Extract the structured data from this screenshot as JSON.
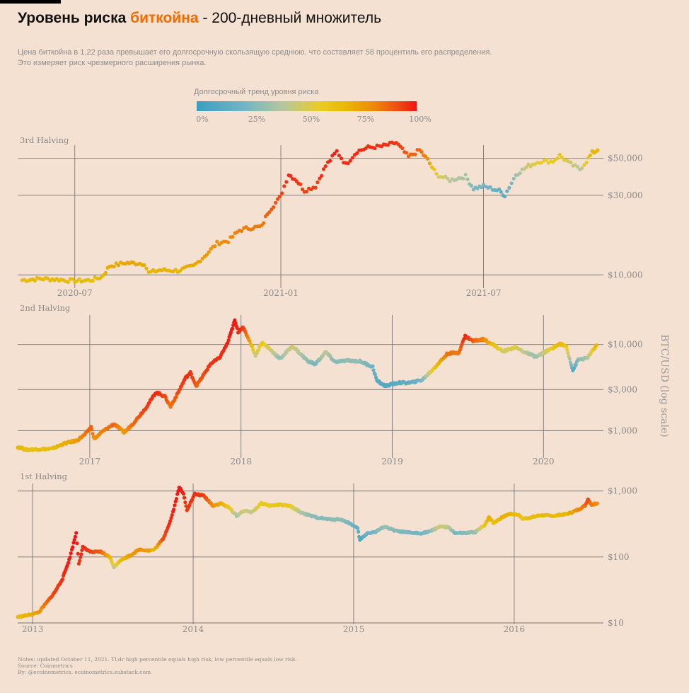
{
  "header": {
    "title_part1": "Уровень риска ",
    "title_part2": "биткойна",
    "title_part3": " - 200-дневный множитель",
    "subtitle_line1": "Цена биткойна в 1,22 раза превышает его долгосрочную скользящую среднюю, что составляет 58 процентиль его распределения.",
    "subtitle_line2": "Это измеряет риск чрезмерного расширения рынка."
  },
  "legend": {
    "title": "Долгосрочный тренд уровня риска",
    "ticks": [
      "0%",
      "25%",
      "50%",
      "75%",
      "100%"
    ]
  },
  "footer": {
    "notes": "Notes: updated October 11, 2021. Tl;dr high percentile equals high risk, low percentile equals low risk.",
    "source": "Source: Coinmetrics",
    "by": "By: @ecoinometrics, ecoinometrics.substack.com"
  },
  "colors": {
    "background": "#f4e1d2",
    "title_accent": "#f26b00",
    "risk_scale": [
      "#3a9fbf",
      "#73b5c4",
      "#b8c79a",
      "#e9cc26",
      "#e8b800",
      "#ee8a0a",
      "#ee4a12",
      "#f01414"
    ]
  },
  "chart_data": [
    {
      "type": "scatter",
      "title": "3rd Halving",
      "ylabel": "BTC/USD (log scale)",
      "yscale": "log",
      "xlim": [
        "2020-05-11",
        "2021-10-11"
      ],
      "ylim": [
        8500,
        60000
      ],
      "xticks": [
        "2020-07",
        "2021-01",
        "2021-07"
      ],
      "yticks": [
        10000,
        30000,
        50000
      ],
      "ytick_labels": [
        "$10,000",
        "$30,000",
        "$50,000"
      ],
      "points": [
        [
          "2020-05-15",
          9300,
          55
        ],
        [
          "2020-06-01",
          9500,
          57
        ],
        [
          "2020-06-15",
          9400,
          56
        ],
        [
          "2020-07-01",
          9200,
          54
        ],
        [
          "2020-07-15",
          9300,
          53
        ],
        [
          "2020-07-25",
          9700,
          56
        ],
        [
          "2020-08-01",
          11300,
          62
        ],
        [
          "2020-08-15",
          11800,
          63
        ],
        [
          "2020-09-01",
          11700,
          62
        ],
        [
          "2020-09-05",
          10300,
          58
        ],
        [
          "2020-09-15",
          10700,
          59
        ],
        [
          "2020-10-01",
          10600,
          58
        ],
        [
          "2020-10-15",
          11300,
          62
        ],
        [
          "2020-10-25",
          13000,
          66
        ],
        [
          "2020-11-05",
          15500,
          70
        ],
        [
          "2020-11-15",
          16000,
          71
        ],
        [
          "2020-11-25",
          18500,
          74
        ],
        [
          "2020-12-01",
          19000,
          74
        ],
        [
          "2020-12-15",
          19500,
          75
        ],
        [
          "2020-12-20",
          23500,
          80
        ],
        [
          "2020-12-31",
          29000,
          86
        ],
        [
          "2021-01-08",
          40000,
          94
        ],
        [
          "2021-01-15",
          37000,
          92
        ],
        [
          "2021-01-22",
          32000,
          88
        ],
        [
          "2021-02-01",
          34000,
          89
        ],
        [
          "2021-02-10",
          45000,
          94
        ],
        [
          "2021-02-20",
          55000,
          97
        ],
        [
          "2021-02-28",
          46000,
          93
        ],
        [
          "2021-03-10",
          55000,
          94
        ],
        [
          "2021-03-20",
          58000,
          94
        ],
        [
          "2021-04-01",
          59000,
          92
        ],
        [
          "2021-04-14",
          62000,
          92
        ],
        [
          "2021-04-25",
          51000,
          80
        ],
        [
          "2021-05-05",
          56000,
          80
        ],
        [
          "2021-05-12",
          49000,
          70
        ],
        [
          "2021-05-20",
          40000,
          40
        ],
        [
          "2021-06-01",
          37000,
          28
        ],
        [
          "2021-06-15",
          39000,
          25
        ],
        [
          "2021-06-22",
          33000,
          15
        ],
        [
          "2021-07-01",
          34000,
          15
        ],
        [
          "2021-07-15",
          32000,
          10
        ],
        [
          "2021-07-20",
          30000,
          8
        ],
        [
          "2021-07-30",
          40000,
          22
        ],
        [
          "2021-08-10",
          45000,
          35
        ],
        [
          "2021-08-20",
          48000,
          42
        ],
        [
          "2021-09-01",
          48000,
          43
        ],
        [
          "2021-09-07",
          52000,
          48
        ],
        [
          "2021-09-15",
          47000,
          35
        ],
        [
          "2021-09-25",
          43000,
          28
        ],
        [
          "2021-10-01",
          48000,
          44
        ],
        [
          "2021-10-06",
          54000,
          60
        ],
        [
          "2021-10-11",
          56000,
          58
        ]
      ]
    },
    {
      "type": "scatter",
      "title": "2nd Halving",
      "ylabel": "BTC/USD (log scale)",
      "yscale": "log",
      "xlim": [
        "2016-07-11",
        "2020-05-11"
      ],
      "ylim": [
        500,
        22000
      ],
      "xticks": [
        "2017",
        "2018",
        "2019",
        "2020"
      ],
      "yticks": [
        1000,
        3000,
        10000
      ],
      "ytick_labels": [
        "$1,000",
        "$3,000",
        "$10,000"
      ],
      "points": [
        [
          "2016-07-11",
          650,
          58
        ],
        [
          "2016-08-01",
          600,
          52
        ],
        [
          "2016-09-01",
          610,
          52
        ],
        [
          "2016-10-01",
          615,
          53
        ],
        [
          "2016-11-01",
          710,
          60
        ],
        [
          "2016-12-01",
          770,
          66
        ],
        [
          "2016-12-20",
          900,
          75
        ],
        [
          "2017-01-04",
          1100,
          82
        ],
        [
          "2017-01-12",
          800,
          68
        ],
        [
          "2017-02-01",
          980,
          74
        ],
        [
          "2017-03-01",
          1200,
          80
        ],
        [
          "2017-03-25",
          950,
          66
        ],
        [
          "2017-04-15",
          1200,
          78
        ],
        [
          "2017-05-15",
          1800,
          88
        ],
        [
          "2017-06-10",
          2800,
          95
        ],
        [
          "2017-07-01",
          2500,
          88
        ],
        [
          "2017-07-15",
          1900,
          76
        ],
        [
          "2017-08-01",
          2700,
          85
        ],
        [
          "2017-08-20",
          4100,
          93
        ],
        [
          "2017-09-01",
          4700,
          93
        ],
        [
          "2017-09-15",
          3300,
          80
        ],
        [
          "2017-10-01",
          4300,
          85
        ],
        [
          "2017-10-20",
          6000,
          92
        ],
        [
          "2017-11-10",
          7000,
          93
        ],
        [
          "2017-11-30",
          10500,
          97
        ],
        [
          "2017-12-17",
          19000,
          100
        ],
        [
          "2017-12-25",
          14000,
          94
        ],
        [
          "2018-01-05",
          16000,
          92
        ],
        [
          "2018-01-20",
          11500,
          70
        ],
        [
          "2018-02-05",
          7500,
          32
        ],
        [
          "2018-02-20",
          10500,
          48
        ],
        [
          "2018-03-10",
          9000,
          38
        ],
        [
          "2018-04-05",
          6800,
          20
        ],
        [
          "2018-05-05",
          9600,
          35
        ],
        [
          "2018-06-10",
          6500,
          20
        ],
        [
          "2018-06-29",
          5900,
          15
        ],
        [
          "2018-07-25",
          8200,
          30
        ],
        [
          "2018-08-15",
          6300,
          18
        ],
        [
          "2018-09-15",
          6500,
          20
        ],
        [
          "2018-10-15",
          6400,
          20
        ],
        [
          "2018-11-15",
          5500,
          12
        ],
        [
          "2018-11-25",
          3800,
          8
        ],
        [
          "2018-12-15",
          3300,
          6
        ],
        [
          "2019-01-15",
          3600,
          8
        ],
        [
          "2019-02-15",
          3600,
          10
        ],
        [
          "2019-03-15",
          3900,
          15
        ],
        [
          "2019-04-10",
          5200,
          45
        ],
        [
          "2019-05-15",
          7900,
          78
        ],
        [
          "2019-06-10",
          8000,
          75
        ],
        [
          "2019-06-26",
          12500,
          96
        ],
        [
          "2019-07-15",
          11000,
          82
        ],
        [
          "2019-08-10",
          11500,
          72
        ],
        [
          "2019-09-01",
          10000,
          55
        ],
        [
          "2019-09-25",
          8300,
          35
        ],
        [
          "2019-10-25",
          9300,
          40
        ],
        [
          "2019-11-20",
          8000,
          28
        ],
        [
          "2019-12-15",
          7200,
          22
        ],
        [
          "2020-01-15",
          8700,
          40
        ],
        [
          "2020-02-10",
          10200,
          58
        ],
        [
          "2020-02-25",
          9500,
          48
        ],
        [
          "2020-03-12",
          5000,
          5
        ],
        [
          "2020-03-25",
          6700,
          18
        ],
        [
          "2020-04-15",
          6900,
          25
        ],
        [
          "2020-05-01",
          8800,
          48
        ],
        [
          "2020-05-08",
          9800,
          58
        ]
      ]
    },
    {
      "type": "scatter",
      "title": "1st Halving",
      "ylabel": "BTC/USD (log scale)",
      "yscale": "log",
      "xlim": [
        "2012-11-28",
        "2016-07-09"
      ],
      "ylim": [
        10,
        1300
      ],
      "xticks": [
        "2013",
        "2014",
        "2015",
        "2016"
      ],
      "yticks": [
        10,
        100,
        1000
      ],
      "ytick_labels": [
        "$10",
        "$100",
        "$1,000"
      ],
      "points": [
        [
          "2012-11-28",
          12.3,
          55
        ],
        [
          "2012-12-25",
          13.3,
          60
        ],
        [
          "2013-01-15",
          14.5,
          66
        ],
        [
          "2013-02-01",
          20,
          78
        ],
        [
          "2013-02-20",
          29,
          88
        ],
        [
          "2013-03-10",
          47,
          94
        ],
        [
          "2013-03-25",
          90,
          98
        ],
        [
          "2013-04-10",
          230,
          100
        ],
        [
          "2013-04-16",
          80,
          92
        ],
        [
          "2013-04-25",
          140,
          95
        ],
        [
          "2013-05-15",
          118,
          88
        ],
        [
          "2013-06-05",
          120,
          82
        ],
        [
          "2013-06-25",
          100,
          60
        ],
        [
          "2013-07-05",
          70,
          30
        ],
        [
          "2013-07-20",
          90,
          55
        ],
        [
          "2013-08-10",
          105,
          65
        ],
        [
          "2013-09-01",
          130,
          70
        ],
        [
          "2013-09-25",
          125,
          65
        ],
        [
          "2013-10-05",
          130,
          55
        ],
        [
          "2013-10-25",
          190,
          85
        ],
        [
          "2013-11-10",
          350,
          95
        ],
        [
          "2013-11-20",
          600,
          98
        ],
        [
          "2013-11-30",
          1150,
          100
        ],
        [
          "2013-12-10",
          900,
          97
        ],
        [
          "2013-12-18",
          520,
          90
        ],
        [
          "2014-01-05",
          900,
          93
        ],
        [
          "2014-01-25",
          850,
          90
        ],
        [
          "2014-02-15",
          600,
          70
        ],
        [
          "2014-03-05",
          650,
          62
        ],
        [
          "2014-03-25",
          550,
          45
        ],
        [
          "2014-04-10",
          420,
          25
        ],
        [
          "2014-04-25",
          500,
          35
        ],
        [
          "2014-05-15",
          480,
          30
        ],
        [
          "2014-06-05",
          650,
          45
        ],
        [
          "2014-06-25",
          600,
          45
        ],
        [
          "2014-07-15",
          620,
          48
        ],
        [
          "2014-08-10",
          590,
          45
        ],
        [
          "2014-09-01",
          480,
          28
        ],
        [
          "2014-09-25",
          420,
          20
        ],
        [
          "2014-10-15",
          390,
          18
        ],
        [
          "2014-11-10",
          370,
          18
        ],
        [
          "2014-12-01",
          375,
          20
        ],
        [
          "2014-12-25",
          320,
          15
        ],
        [
          "2015-01-10",
          270,
          10
        ],
        [
          "2015-01-15",
          180,
          5
        ],
        [
          "2015-02-01",
          230,
          12
        ],
        [
          "2015-02-20",
          240,
          15
        ],
        [
          "2015-03-12",
          290,
          22
        ],
        [
          "2015-04-05",
          250,
          18
        ],
        [
          "2015-05-01",
          235,
          15
        ],
        [
          "2015-06-01",
          228,
          14
        ],
        [
          "2015-06-25",
          245,
          18
        ],
        [
          "2015-07-15",
          290,
          35
        ],
        [
          "2015-08-05",
          280,
          30
        ],
        [
          "2015-08-20",
          230,
          15
        ],
        [
          "2015-09-15",
          230,
          18
        ],
        [
          "2015-10-05",
          240,
          22
        ],
        [
          "2015-10-25",
          300,
          45
        ],
        [
          "2015-11-05",
          400,
          62
        ],
        [
          "2015-11-15",
          330,
          50
        ],
        [
          "2015-12-05",
          400,
          60
        ],
        [
          "2015-12-20",
          450,
          60
        ],
        [
          "2016-01-10",
          440,
          55
        ],
        [
          "2016-01-20",
          380,
          48
        ],
        [
          "2016-02-10",
          400,
          55
        ],
        [
          "2016-03-01",
          430,
          55
        ],
        [
          "2016-04-01",
          420,
          55
        ],
        [
          "2016-05-01",
          450,
          58
        ],
        [
          "2016-05-25",
          520,
          70
        ],
        [
          "2016-06-10",
          600,
          78
        ],
        [
          "2016-06-17",
          750,
          88
        ],
        [
          "2016-06-25",
          620,
          75
        ],
        [
          "2016-07-08",
          650,
          70
        ]
      ]
    }
  ]
}
